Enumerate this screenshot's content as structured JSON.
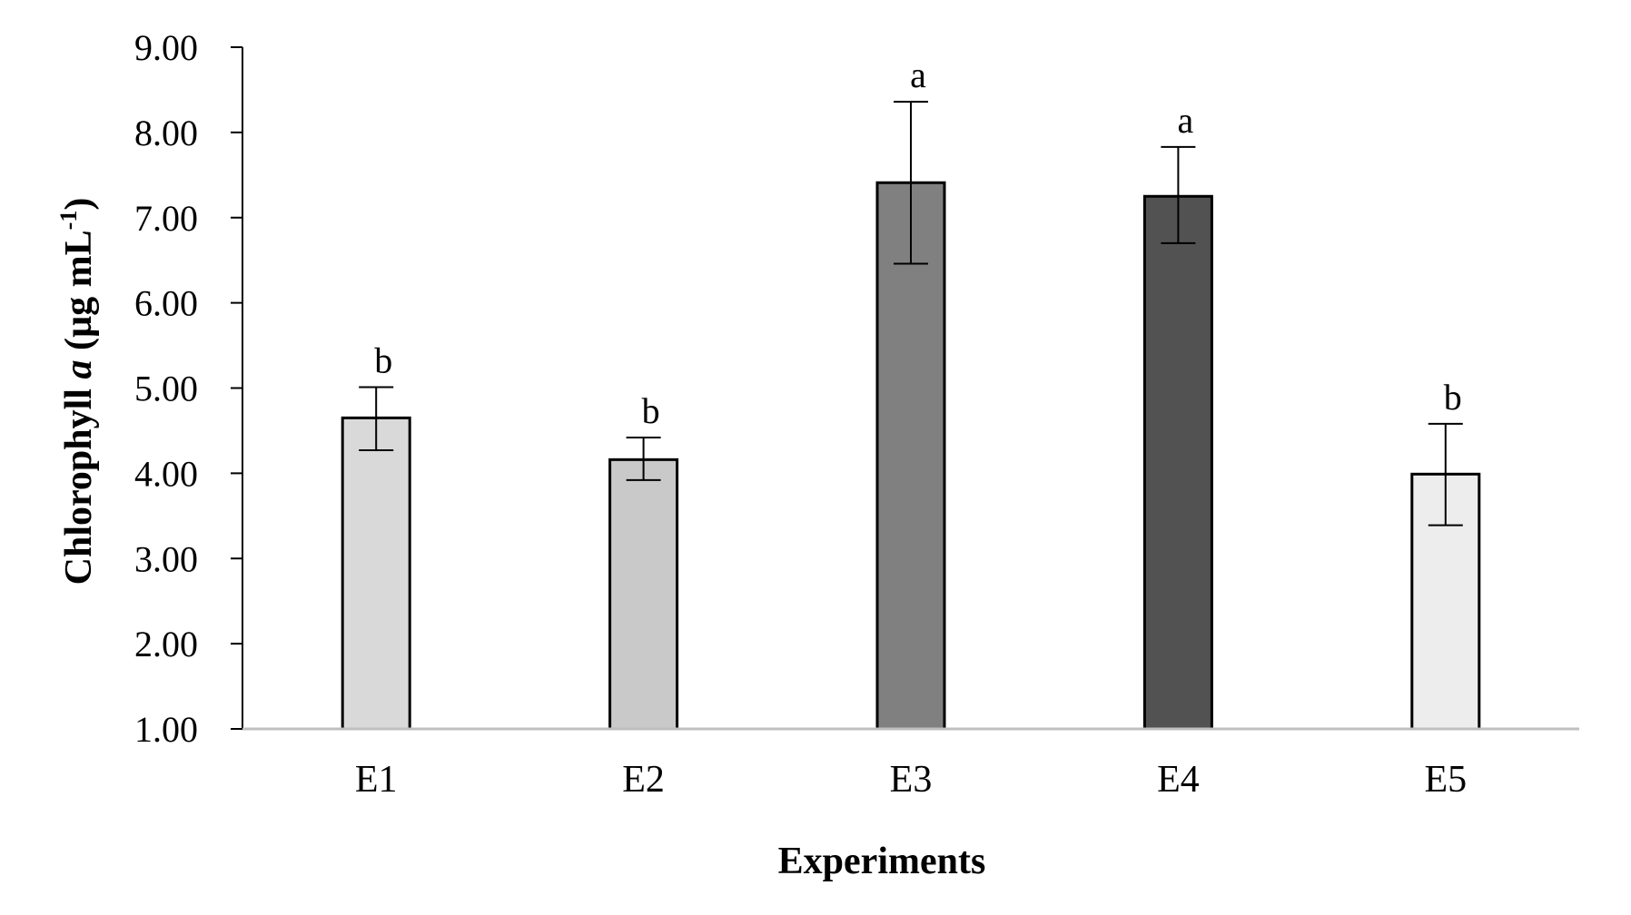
{
  "chart_data": {
    "type": "bar",
    "title": "",
    "xlabel": "Experiments",
    "ylabel_parts": {
      "prefix": "Chlorophyll ",
      "italic": "a",
      "unit_open": " (µg mL",
      "superscript": "-1",
      "unit_close": ")"
    },
    "ylabel": "Chlorophyll a (µg mL-1)",
    "categories": [
      "E1",
      "E2",
      "E3",
      "E4",
      "E5"
    ],
    "values": [
      4.65,
      4.16,
      7.41,
      7.25,
      3.99
    ],
    "error_upper": [
      5.01,
      4.42,
      8.36,
      7.83,
      4.58
    ],
    "error_lower": [
      4.27,
      3.92,
      6.46,
      6.7,
      3.39
    ],
    "significance_letters": [
      "b",
      "b",
      "a",
      "a",
      "b"
    ],
    "bar_colors": [
      "#d9d9d9",
      "#c9c9c9",
      "#808080",
      "#525252",
      "#ededed"
    ],
    "ylim": [
      1.0,
      9.0
    ],
    "yticks": [
      1.0,
      2.0,
      3.0,
      4.0,
      5.0,
      6.0,
      7.0,
      8.0,
      9.0
    ],
    "ytick_labels": [
      "1.00",
      "2.00",
      "3.00",
      "4.00",
      "5.00",
      "6.00",
      "7.00",
      "8.00",
      "9.00"
    ],
    "grid": false,
    "legend": null
  }
}
